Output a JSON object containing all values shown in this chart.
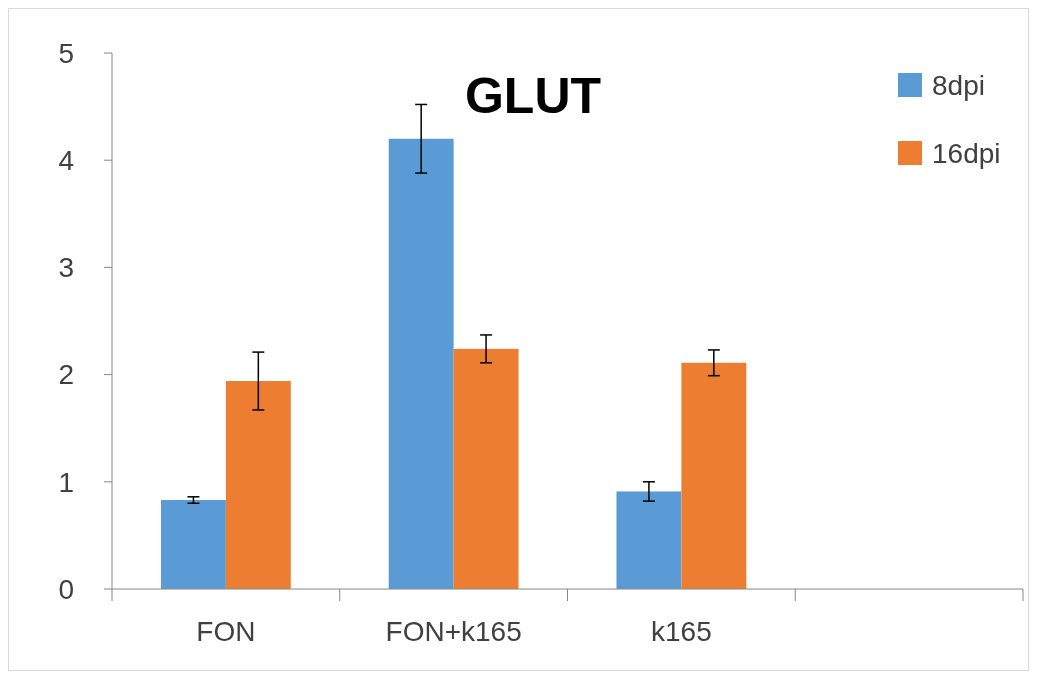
{
  "chart_data": {
    "type": "bar",
    "title": "GLUT",
    "categories": [
      "FON",
      "FON+k165",
      "k165",
      null
    ],
    "series": [
      {
        "name": "8dpi",
        "color": "#5b9bd5",
        "values": [
          0.83,
          4.2,
          0.91,
          null
        ],
        "errors": [
          0.03,
          0.32,
          0.09,
          null
        ]
      },
      {
        "name": "16dpi",
        "color": "#ed7d31",
        "values": [
          1.94,
          2.24,
          2.11,
          null
        ],
        "errors": [
          0.27,
          0.13,
          0.12,
          null
        ]
      }
    ],
    "ylim": [
      0,
      5
    ],
    "yticks": [
      0,
      1,
      2,
      3,
      4,
      5
    ],
    "grid": false,
    "legend": "top right"
  }
}
